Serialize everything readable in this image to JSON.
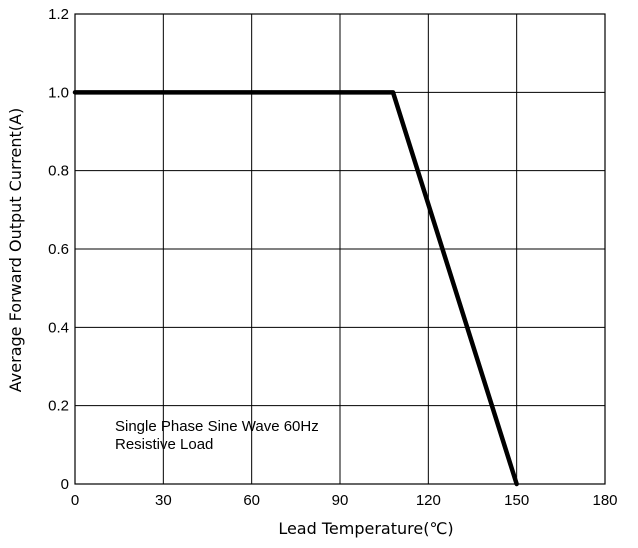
{
  "chart_data": {
    "type": "line",
    "xlabel": "Lead Temperature(℃)",
    "ylabel": "Average Forward Output Current(A)",
    "xlim": [
      0,
      180
    ],
    "ylim": [
      0,
      1.2
    ],
    "x_ticks": [
      0,
      30,
      60,
      90,
      120,
      150,
      180
    ],
    "y_ticks": [
      0,
      0.2,
      0.4,
      0.6,
      0.8,
      1.0,
      1.2
    ],
    "x_tick_labels": [
      "0",
      "30",
      "60",
      "90",
      "120",
      "150",
      "180"
    ],
    "y_tick_labels": [
      "0",
      "0.2",
      "0.4",
      "0.6",
      "0.8",
      "1.0",
      "1.2"
    ],
    "grid": true,
    "series": [
      {
        "x": [
          0,
          108,
          150
        ],
        "y": [
          1.0,
          1.0,
          0
        ]
      }
    ],
    "annotations": [
      "Single Phase  Sine Wave 60Hz",
      "Resistive Load"
    ]
  },
  "colors": {
    "line": "#000000",
    "grid": "#000000",
    "background": "#ffffff"
  }
}
